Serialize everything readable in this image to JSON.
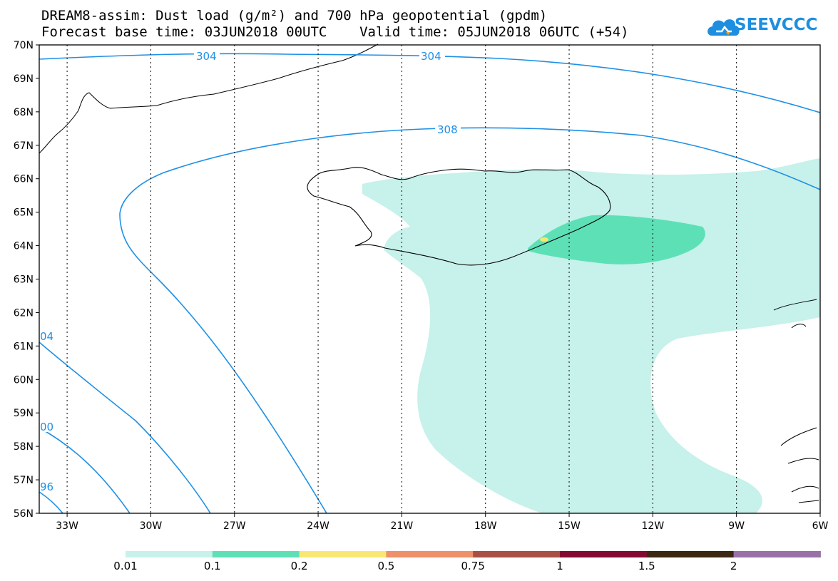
{
  "title_line1": "DREAM8-assim: Dust load (g/m²) and 700 hPa geopotential (gpdm)",
  "title_line2": "Forecast base time: 03JUN2018 00UTC    Valid time: 05JUN2018 06UTC (+54)",
  "logo": {
    "text": "SEEVCCC",
    "icon": "cloud-logo-icon",
    "color": "#1e8fe0"
  },
  "map": {
    "lon_range": [
      -34.0,
      -6.0
    ],
    "lat_range": [
      56.0,
      70.0
    ],
    "lat_ticks": [
      "70N",
      "69N",
      "68N",
      "67N",
      "66N",
      "65N",
      "64N",
      "63N",
      "62N",
      "61N",
      "60N",
      "59N",
      "58N",
      "57N",
      "56N"
    ],
    "lon_ticks": [
      "33W",
      "30W",
      "27W",
      "24W",
      "21W",
      "18W",
      "15W",
      "12W",
      "9W",
      "6W"
    ],
    "contour_color": "#1e90e6",
    "contour_labels": [
      "304",
      "304",
      "308",
      "04",
      "00",
      "96"
    ]
  },
  "colorbar": {
    "colors": [
      "#c7f1eb",
      "#5ee0b7",
      "#f8e870",
      "#ee9068",
      "#a85045",
      "#850a33",
      "#3a2813",
      "#9a70a8"
    ],
    "labels": [
      "0.01",
      "0.1",
      "0.2",
      "0.5",
      "0.75",
      "1",
      "1.5",
      "2"
    ]
  }
}
